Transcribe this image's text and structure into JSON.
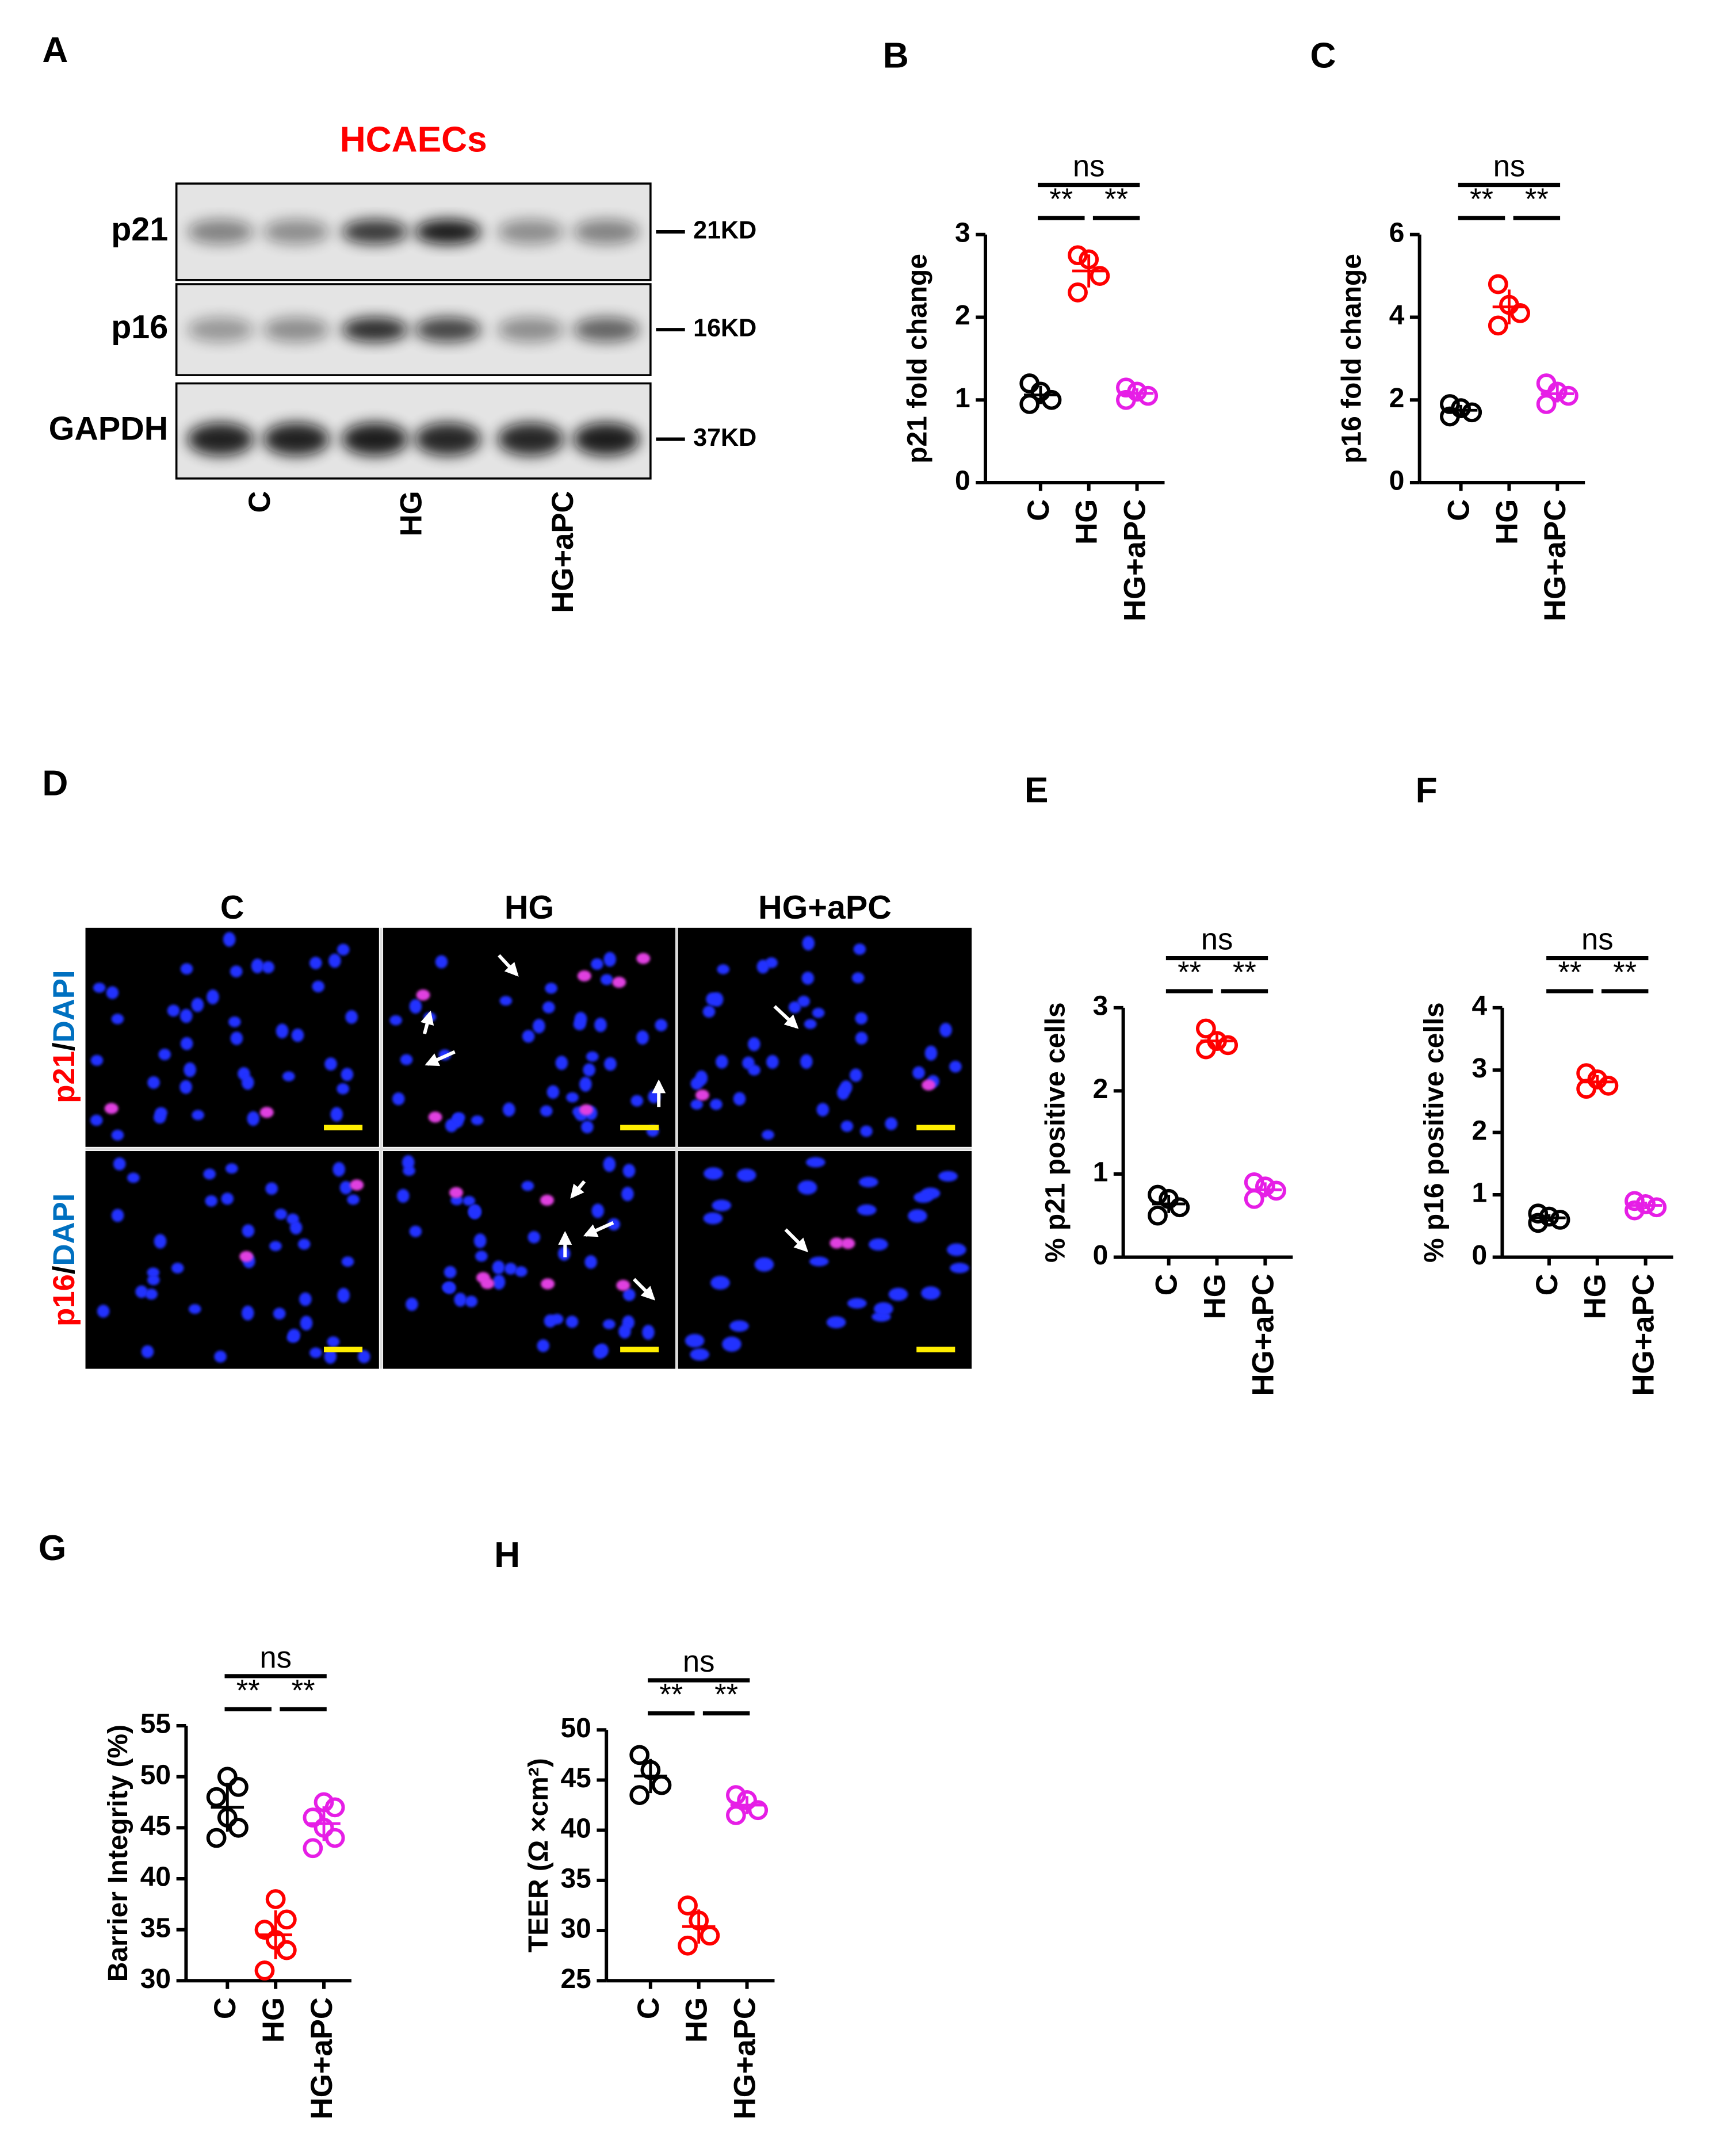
{
  "western_blot": {
    "label": "A",
    "title": "HCAECs",
    "rows": [
      "p21",
      "p16",
      "GAPDH"
    ],
    "markers": [
      "21KD",
      "16KD",
      "37KD"
    ],
    "lanes": [
      "C",
      "HG",
      "HG+aPC"
    ]
  },
  "microscopy": {
    "label": "D",
    "columns": [
      "C",
      "HG",
      "HG+aPC"
    ],
    "rows": [
      {
        "marker": "p21",
        "separator": "/",
        "stain": "DAPI"
      },
      {
        "marker": "p16",
        "separator": "/",
        "stain": "DAPI"
      }
    ]
  },
  "chart_data": [
    {
      "type": "dot",
      "label": "B",
      "ylabel": "p21 fold change",
      "categories": [
        "C",
        "HG",
        "HG+aPC"
      ],
      "colors": [
        "#000000",
        "#ff0000",
        "#e61ee6"
      ],
      "values": [
        [
          0.95,
          1.0,
          1.1,
          1.2
        ],
        [
          2.3,
          2.5,
          2.7,
          2.75
        ],
        [
          1.0,
          1.05,
          1.1,
          1.15
        ]
      ],
      "means": [
        1.06,
        2.56,
        1.08
      ],
      "sd": [
        0.11,
        0.2,
        0.06
      ],
      "ylim": [
        0,
        3
      ],
      "yticks": [
        0,
        1,
        2,
        3
      ],
      "significance": [
        "**",
        "**",
        "ns"
      ]
    },
    {
      "type": "dot",
      "label": "C",
      "ylabel": "p16 fold change",
      "categories": [
        "C",
        "HG",
        "HG+aPC"
      ],
      "colors": [
        "#000000",
        "#ff0000",
        "#e61ee6"
      ],
      "values": [
        [
          1.6,
          1.7,
          1.8,
          1.9
        ],
        [
          3.8,
          4.1,
          4.3,
          4.8
        ],
        [
          1.9,
          2.1,
          2.2,
          2.4
        ]
      ],
      "means": [
        1.75,
        4.25,
        2.15
      ],
      "sd": [
        0.13,
        0.42,
        0.21
      ],
      "ylim": [
        0,
        6
      ],
      "yticks": [
        0,
        2,
        4,
        6
      ],
      "significance": [
        "**",
        "**",
        "ns"
      ]
    },
    {
      "type": "dot",
      "label": "E",
      "ylabel": "% p21 positive cells",
      "categories": [
        "C",
        "HG",
        "HG+aPC"
      ],
      "colors": [
        "#000000",
        "#ff0000",
        "#e61ee6"
      ],
      "values": [
        [
          0.5,
          0.6,
          0.7,
          0.75
        ],
        [
          2.5,
          2.55,
          2.6,
          2.75
        ],
        [
          0.7,
          0.8,
          0.85,
          0.9
        ]
      ],
      "means": [
        0.64,
        2.6,
        0.81
      ],
      "sd": [
        0.11,
        0.11,
        0.09
      ],
      "ylim": [
        0,
        3
      ],
      "yticks": [
        0,
        1,
        2,
        3
      ],
      "significance": [
        "**",
        "**",
        "ns"
      ]
    },
    {
      "type": "dot",
      "label": "F",
      "ylabel": "% p16 positive cells",
      "categories": [
        "C",
        "HG",
        "HG+aPC"
      ],
      "colors": [
        "#000000",
        "#ff0000",
        "#e61ee6"
      ],
      "values": [
        [
          0.55,
          0.6,
          0.65,
          0.7
        ],
        [
          2.7,
          2.75,
          2.85,
          2.95
        ],
        [
          0.75,
          0.8,
          0.85,
          0.9
        ]
      ],
      "means": [
        0.63,
        2.81,
        0.83
      ],
      "sd": [
        0.06,
        0.11,
        0.06
      ],
      "ylim": [
        0,
        4
      ],
      "yticks": [
        0,
        1,
        2,
        3,
        4
      ],
      "significance": [
        "**",
        "**",
        "ns"
      ]
    },
    {
      "type": "dot",
      "label": "G",
      "ylabel": "Barrier Integrity (%)",
      "categories": [
        "C",
        "HG",
        "HG+aPC"
      ],
      "colors": [
        "#000000",
        "#ff0000",
        "#e61ee6"
      ],
      "values": [
        [
          44,
          45,
          46,
          48,
          49,
          50
        ],
        [
          31,
          33,
          34,
          35,
          36,
          38
        ],
        [
          43,
          44,
          45,
          46,
          47,
          47.5
        ]
      ],
      "means": [
        47,
        34.5,
        45.4
      ],
      "sd": [
        2.4,
        2.4,
        1.7
      ],
      "ylim": [
        30,
        55
      ],
      "yticks": [
        30,
        35,
        40,
        45,
        50,
        55
      ],
      "significance": [
        "**",
        "**",
        "ns"
      ]
    },
    {
      "type": "dot",
      "label": "H",
      "ylabel": "TEER (Ω ×cm²)",
      "categories": [
        "C",
        "HG",
        "HG+aPC"
      ],
      "colors": [
        "#000000",
        "#ff0000",
        "#e61ee6"
      ],
      "values": [
        [
          43.5,
          44.5,
          46,
          47.5
        ],
        [
          28.5,
          29.5,
          31,
          32.5
        ],
        [
          41.5,
          42,
          43,
          43.5
        ]
      ],
      "means": [
        45.4,
        30.4,
        42.5
      ],
      "sd": [
        1.7,
        1.7,
        0.9
      ],
      "ylim": [
        25,
        50
      ],
      "yticks": [
        25,
        30,
        35,
        40,
        45,
        50
      ],
      "significance": [
        "**",
        "**",
        "ns"
      ]
    }
  ]
}
